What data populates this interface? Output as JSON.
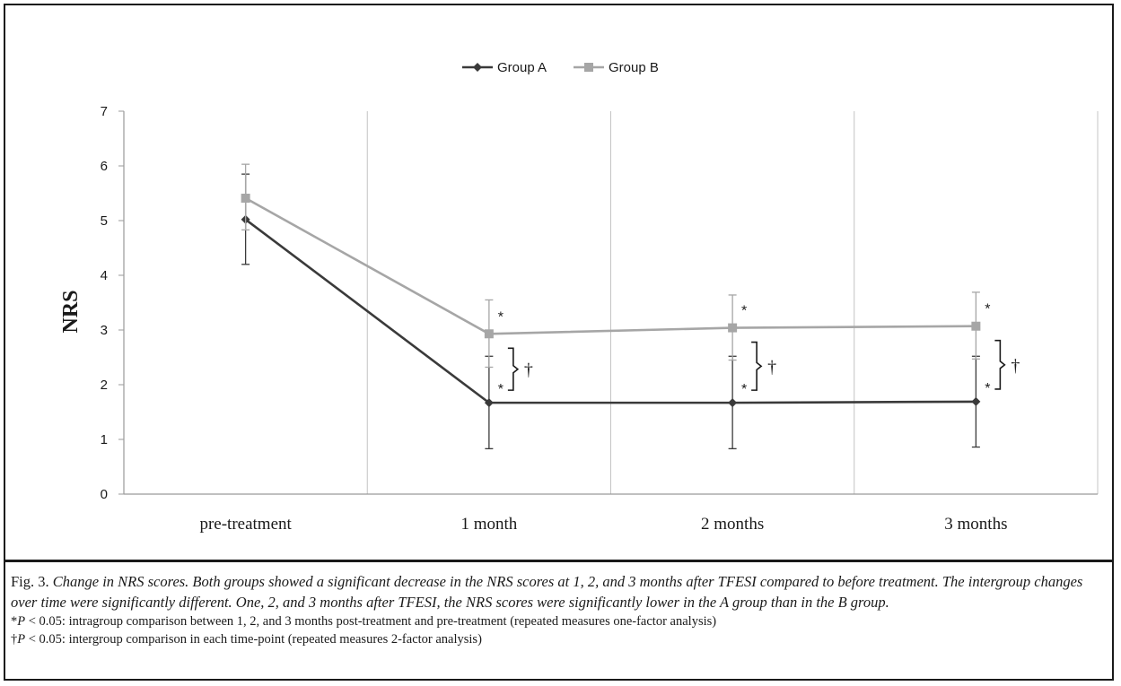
{
  "chart_data": {
    "type": "line",
    "categories": [
      "pre-treatment",
      "1 month",
      "2 months",
      "3 months"
    ],
    "ylabel": "NRS",
    "xlabel": "",
    "ylim": [
      0,
      7
    ],
    "yticks": [
      0,
      1,
      2,
      3,
      4,
      5,
      6,
      7
    ],
    "grid": "vertical lines between categories",
    "legend_position": "top-center",
    "series": [
      {
        "name": "Group A",
        "color": "#3a3a3a",
        "marker": "diamond",
        "values": [
          5.02,
          1.67,
          1.67,
          1.69
        ],
        "err_low": [
          4.2,
          0.83,
          0.83,
          0.86
        ],
        "err_high": [
          5.85,
          2.52,
          2.52,
          2.52
        ]
      },
      {
        "name": "Group B",
        "color": "#a6a6a6",
        "marker": "square",
        "values": [
          5.41,
          2.93,
          3.04,
          3.07
        ],
        "err_low": [
          4.83,
          2.32,
          2.45,
          2.47
        ],
        "err_high": [
          6.03,
          3.55,
          3.64,
          3.69
        ]
      }
    ],
    "annotations": {
      "intragroup_symbol": "*",
      "intergroup_symbol": "†",
      "points": [
        "1 month",
        "2 months",
        "3 months"
      ]
    }
  },
  "caption": {
    "lead": "Fig. 3.",
    "body": "Change in NRS scores. Both groups showed a significant decrease in the NRS scores at 1, 2, and 3 months after TFESI compared to before treatment. The intergroup changes over time were significantly different. One, 2, and 3 months after TFESI, the NRS scores were significantly lower in the A group than in the B group.",
    "note1_prefix": "*",
    "note1_p": "P",
    "note1_rest": " < 0.05: intragroup comparison between 1, 2, and 3 months post-treatment and pre-treatment (repeated measures one-factor analysis)",
    "note2_prefix": "†",
    "note2_p": "P",
    "note2_rest": " < 0.05: intergroup comparison in each time-point (repeated measures 2-factor analysis)"
  }
}
